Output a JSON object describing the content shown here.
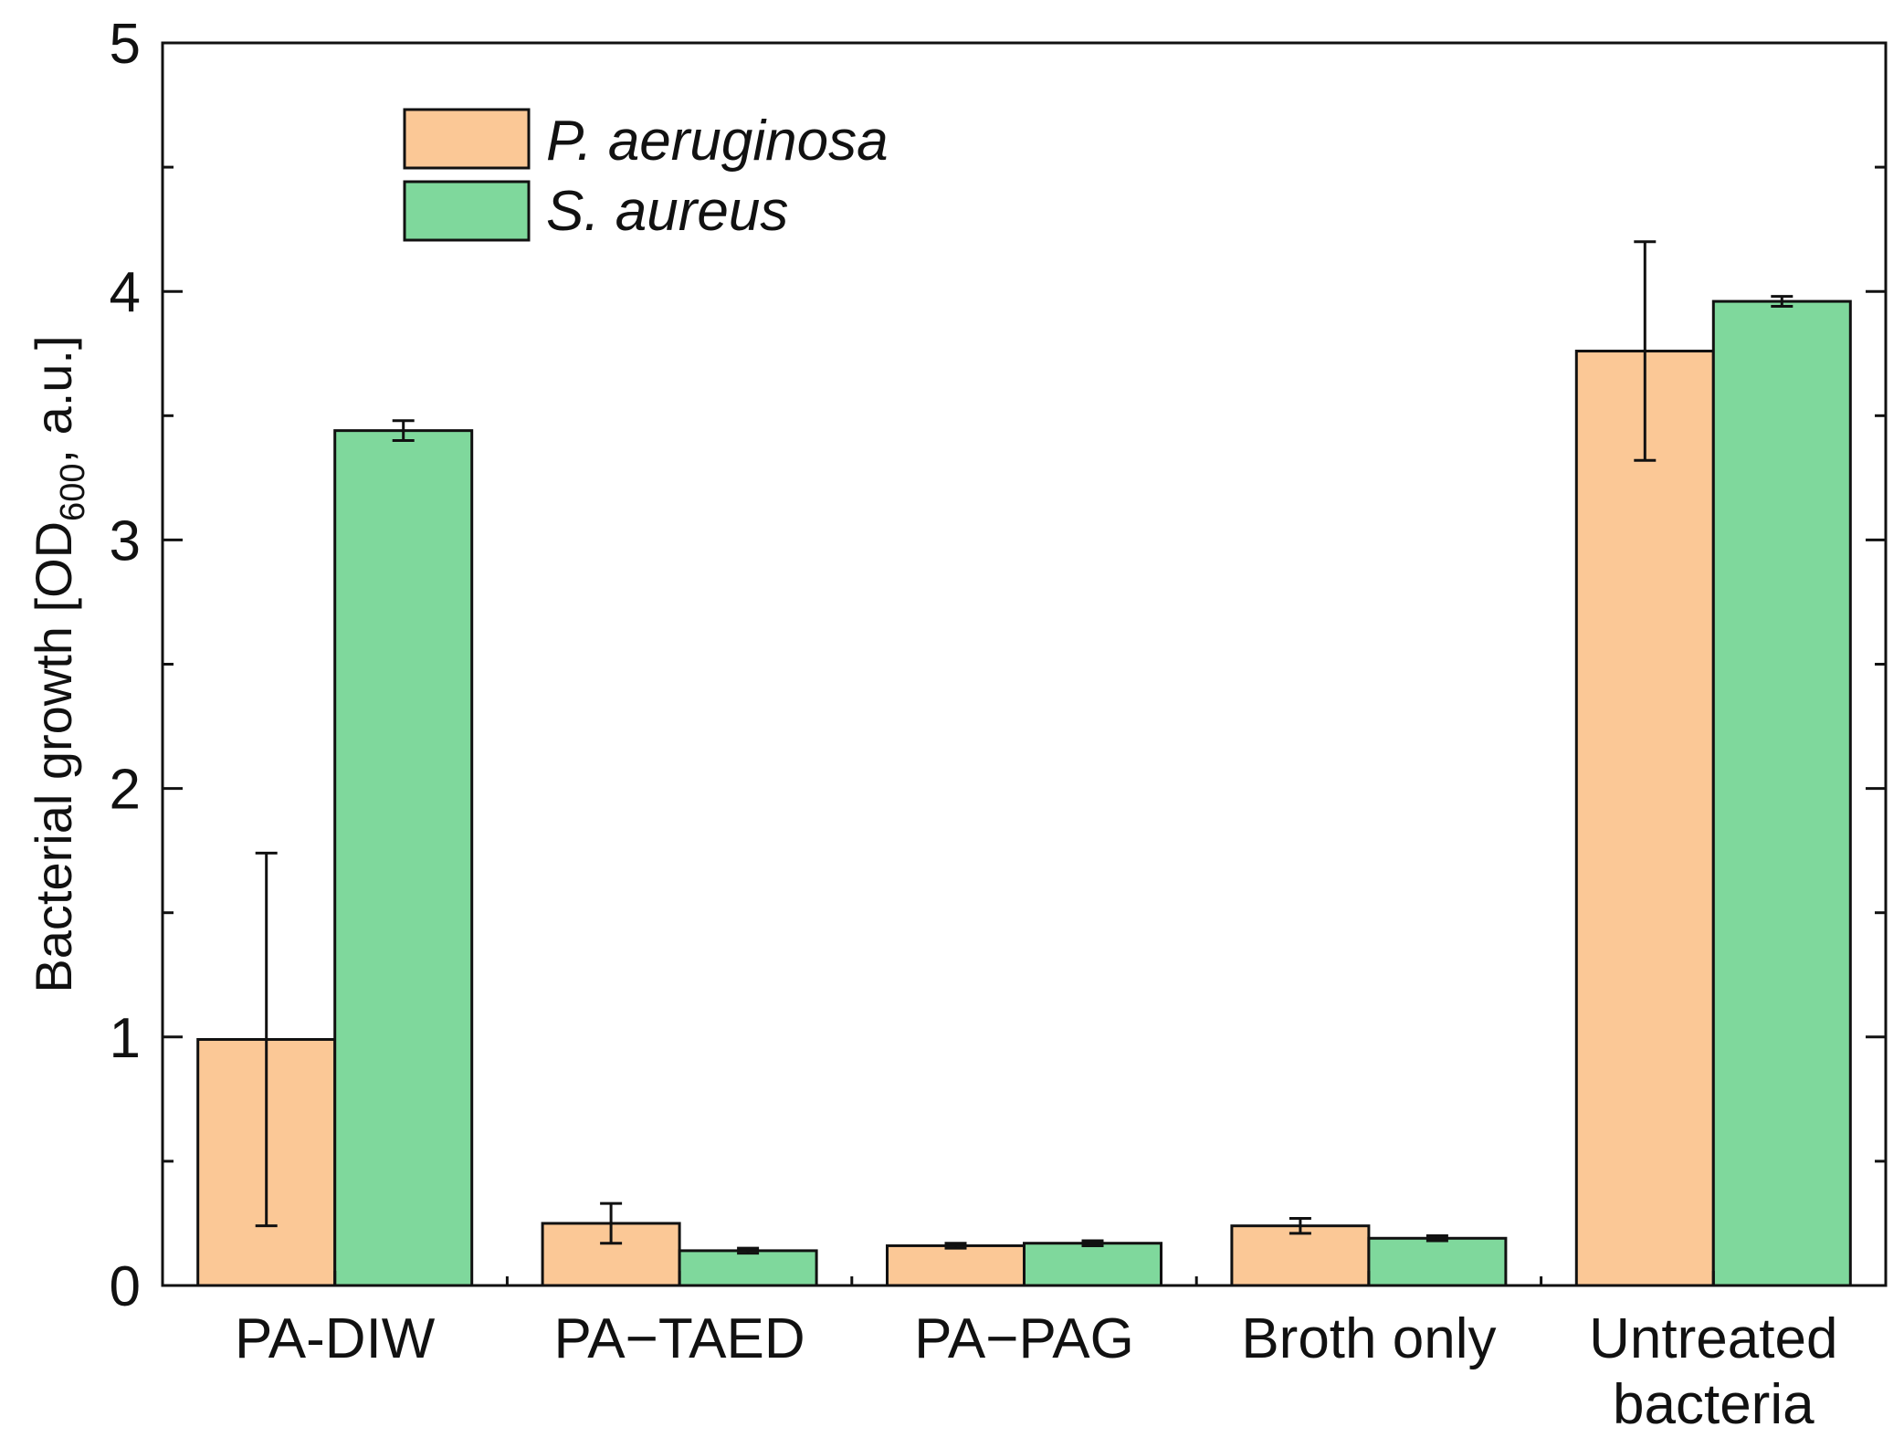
{
  "chart_data": {
    "type": "bar",
    "title": "",
    "xlabel": "",
    "ylabel": {
      "main": "Bacterial growth [OD",
      "subscript": "600",
      "suffix": ", a.u.]"
    },
    "ylim": [
      0,
      5
    ],
    "yticks": [
      "0",
      "1",
      "2",
      "3",
      "4",
      "5"
    ],
    "categories": [
      {
        "lines": [
          "PA-DIW"
        ]
      },
      {
        "lines": [
          "PA−TAED"
        ]
      },
      {
        "lines": [
          "PA−PAG"
        ]
      },
      {
        "lines": [
          "Broth only"
        ]
      },
      {
        "lines": [
          "Untreated",
          "bacteria"
        ]
      }
    ],
    "series": [
      {
        "name": "P. aeruginosa",
        "color": "#fbc896",
        "values": [
          0.99,
          0.25,
          0.16,
          0.24,
          3.76
        ],
        "errors": [
          0.75,
          0.08,
          0.01,
          0.03,
          0.44
        ]
      },
      {
        "name": "S. aureus",
        "color": "#7fd89c",
        "values": [
          3.44,
          0.14,
          0.17,
          0.19,
          3.96
        ],
        "errors": [
          0.04,
          0.01,
          0.01,
          0.01,
          0.02
        ]
      }
    ],
    "legend": {
      "position": "top-left"
    },
    "grid": false
  }
}
